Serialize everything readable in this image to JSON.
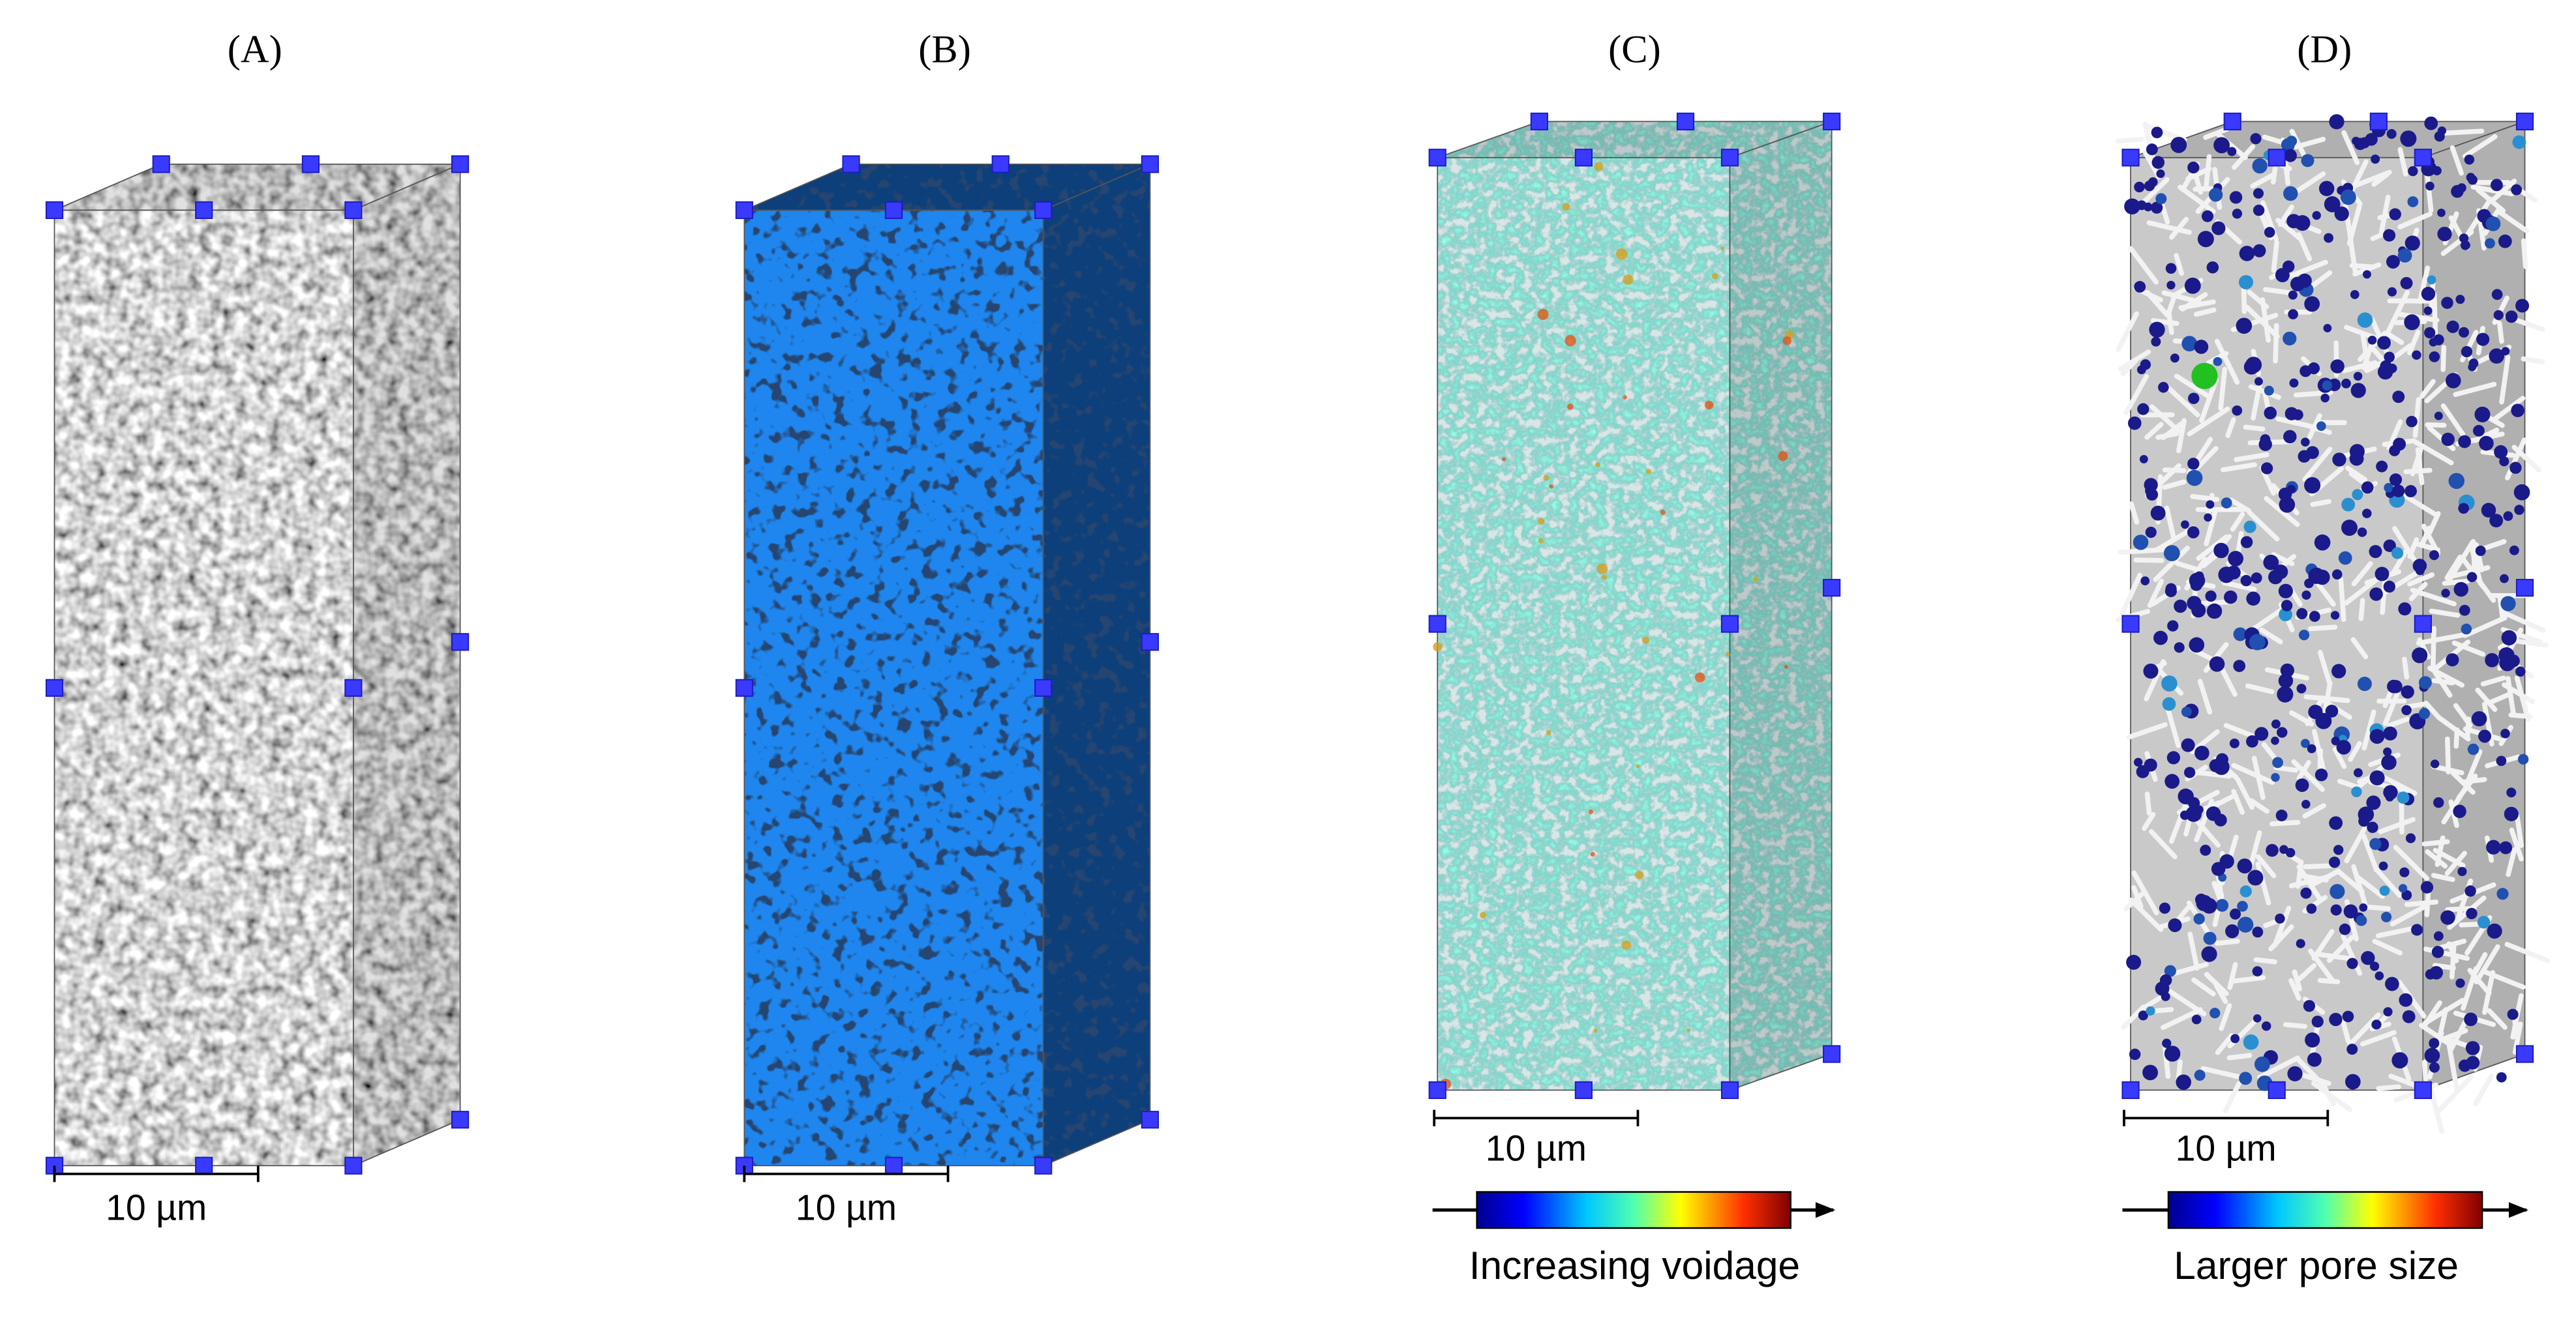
{
  "panels": [
    {
      "label": "(A)",
      "scale_bar": "10 µm"
    },
    {
      "label": "(B)",
      "scale_bar": "10 µm"
    },
    {
      "label": "(C)",
      "scale_bar": "10 µm",
      "colorbar_caption": "Increasing voidage"
    },
    {
      "label": "(D)",
      "scale_bar": "10 µm",
      "colorbar_caption": "Larger pore size"
    }
  ]
}
